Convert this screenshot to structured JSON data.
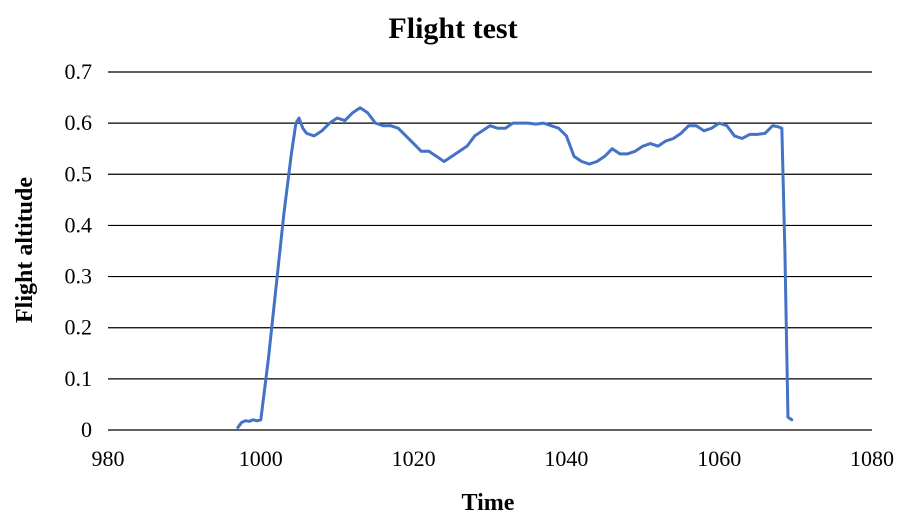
{
  "chart_data": {
    "type": "line",
    "title": "Flight test",
    "xlabel": "Time",
    "ylabel": "Flight altitude",
    "xlim": [
      980,
      1080
    ],
    "ylim": [
      0,
      0.7
    ],
    "xticks": [
      980,
      1000,
      1020,
      1040,
      1060,
      1080
    ],
    "xtick_labels": [
      "980",
      "1000",
      "1020",
      "1040",
      "1060",
      "1080"
    ],
    "yticks": [
      0,
      0.1,
      0.2,
      0.3,
      0.4,
      0.5,
      0.6,
      0.7
    ],
    "ytick_labels": [
      "0",
      "0.1",
      "0.2",
      "0.3",
      "0.4",
      "0.5",
      "0.6",
      "0.7"
    ],
    "grid": "horizontal",
    "legend": "none",
    "series_color": "#4472C4",
    "series": [
      {
        "x": [
          997.0,
          997.5,
          998.0,
          998.5,
          999.0,
          999.5,
          1000.0,
          1001.0,
          1002.0,
          1003.0,
          1004.0,
          1004.6,
          1005.0,
          1005.5,
          1006.0,
          1007.0,
          1008.0,
          1009.0,
          1010.0,
          1011.0,
          1012.0,
          1013.0,
          1014.0,
          1015.0,
          1016.0,
          1017.0,
          1018.0,
          1019.0,
          1020.0,
          1021.0,
          1022.0,
          1023.0,
          1024.0,
          1025.0,
          1026.0,
          1027.0,
          1028.0,
          1029.0,
          1030.0,
          1031.0,
          1032.0,
          1033.0,
          1034.0,
          1035.0,
          1036.0,
          1037.0,
          1038.0,
          1039.0,
          1040.0,
          1041.0,
          1042.0,
          1043.0,
          1044.0,
          1045.0,
          1046.0,
          1047.0,
          1048.0,
          1049.0,
          1050.0,
          1051.0,
          1052.0,
          1053.0,
          1054.0,
          1055.0,
          1056.0,
          1057.0,
          1058.0,
          1059.0,
          1060.0,
          1061.0,
          1062.0,
          1063.0,
          1064.0,
          1065.0,
          1066.0,
          1067.0,
          1067.7,
          1068.2,
          1068.6,
          1069.0,
          1069.5
        ],
        "y": [
          0.005,
          0.015,
          0.018,
          0.017,
          0.02,
          0.018,
          0.02,
          0.14,
          0.28,
          0.42,
          0.54,
          0.6,
          0.61,
          0.59,
          0.58,
          0.575,
          0.585,
          0.6,
          0.61,
          0.605,
          0.62,
          0.63,
          0.62,
          0.6,
          0.595,
          0.595,
          0.59,
          0.575,
          0.56,
          0.545,
          0.545,
          0.535,
          0.525,
          0.535,
          0.545,
          0.555,
          0.575,
          0.585,
          0.595,
          0.59,
          0.59,
          0.6,
          0.6,
          0.6,
          0.598,
          0.6,
          0.595,
          0.59,
          0.575,
          0.535,
          0.525,
          0.52,
          0.525,
          0.535,
          0.55,
          0.54,
          0.54,
          0.545,
          0.555,
          0.56,
          0.555,
          0.565,
          0.57,
          0.58,
          0.595,
          0.595,
          0.585,
          0.59,
          0.6,
          0.595,
          0.575,
          0.57,
          0.578,
          0.578,
          0.58,
          0.595,
          0.593,
          0.59,
          0.35,
          0.025,
          0.02
        ]
      }
    ]
  }
}
